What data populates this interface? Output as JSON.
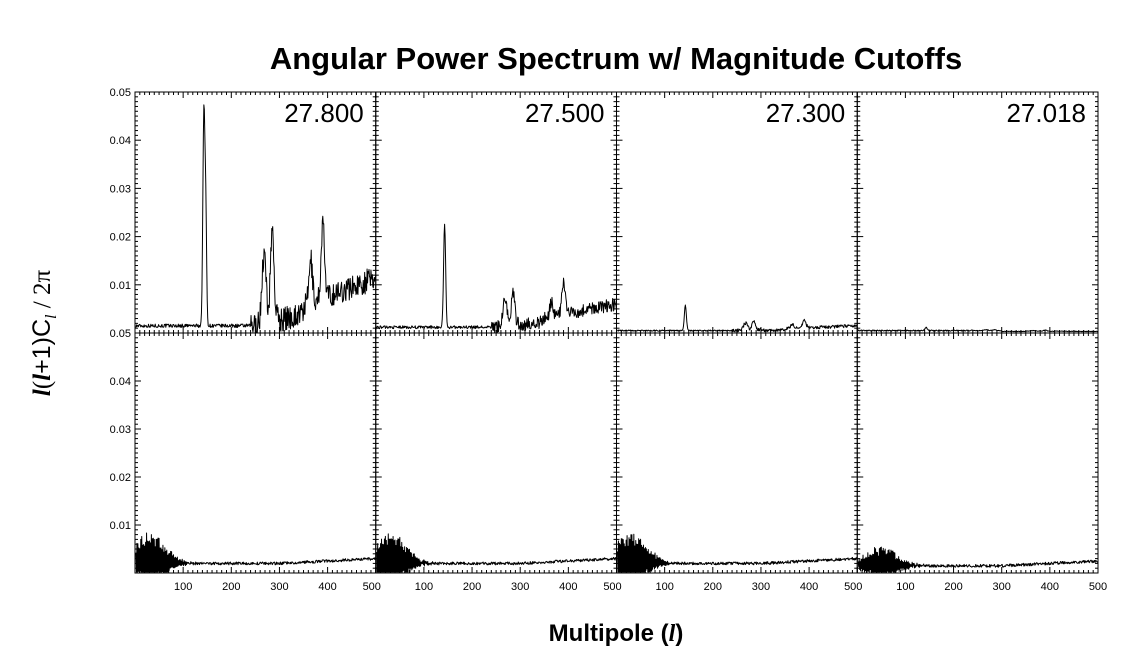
{
  "title": "Angular Power Spectrum w/ Magnitude Cutoffs",
  "xlabel": {
    "main": "Multipole (",
    "var": "l",
    "close": ")"
  },
  "ylabel": {
    "part1": "l",
    "part2": "(",
    "part3": "l",
    "part4": "+1)C",
    "sub": "l",
    "part5": " / 2π"
  },
  "chart_data": {
    "type": "line",
    "layout": {
      "rows": 2,
      "cols": 4
    },
    "xlim": [
      0,
      500
    ],
    "ylim": [
      0,
      0.05
    ],
    "xticks": [
      100,
      200,
      300,
      400,
      500
    ],
    "yticks": [
      0.01,
      0.02,
      0.03,
      0.04,
      0.05
    ],
    "ytick_labels": [
      "0.01",
      "0.02",
      "0.03",
      "0.04",
      "0.05"
    ],
    "xtick_label_sets": [
      [
        "100",
        "200",
        "300",
        "400",
        "500"
      ],
      [
        "100",
        "200",
        "300",
        "400",
        "500"
      ],
      [
        "100",
        "200",
        "300",
        "400",
        "500"
      ],
      [
        "100",
        "200",
        "300",
        "400",
        "500"
      ]
    ],
    "column_labels": [
      "27.800",
      "27.500",
      "27.300",
      "27.018"
    ],
    "top_row": {
      "description_free_data": true,
      "peaks": [
        {
          "center": 143,
          "width": 3,
          "amps": [
            0.044,
            0.0215,
            0.0052,
            0.0007
          ]
        },
        {
          "center": 147,
          "width": 2.5,
          "amps": [
            0.022,
            0.0,
            0.0,
            0.0
          ]
        },
        {
          "center": 268,
          "width": 6,
          "amps": [
            0.014,
            0.0055,
            0.0015,
            0.0002
          ]
        },
        {
          "center": 285,
          "width": 5,
          "amps": [
            0.019,
            0.0065,
            0.0018,
            0.0002
          ]
        },
        {
          "center": 390,
          "width": 5,
          "amps": [
            0.0155,
            0.0065,
            0.0015,
            0.0002
          ]
        },
        {
          "center": 365,
          "width": 5,
          "amps": [
            0.009,
            0.003,
            0.0008,
            0.0001
          ]
        }
      ],
      "baseline": [
        0.0015,
        0.0012,
        0.0005,
        0.0005
      ],
      "trend_end": [
        0.0115,
        0.006,
        0.0015,
        0.0003
      ]
    },
    "bottom_row": {
      "low_l_amplitude": [
        0.0085,
        0.0085,
        0.0085,
        0.0055
      ],
      "low_l_peak_at": [
        30,
        30,
        30,
        50
      ],
      "floor": [
        0.002,
        0.002,
        0.002,
        0.0015
      ],
      "end_value": [
        0.003,
        0.003,
        0.003,
        0.0025
      ]
    }
  }
}
